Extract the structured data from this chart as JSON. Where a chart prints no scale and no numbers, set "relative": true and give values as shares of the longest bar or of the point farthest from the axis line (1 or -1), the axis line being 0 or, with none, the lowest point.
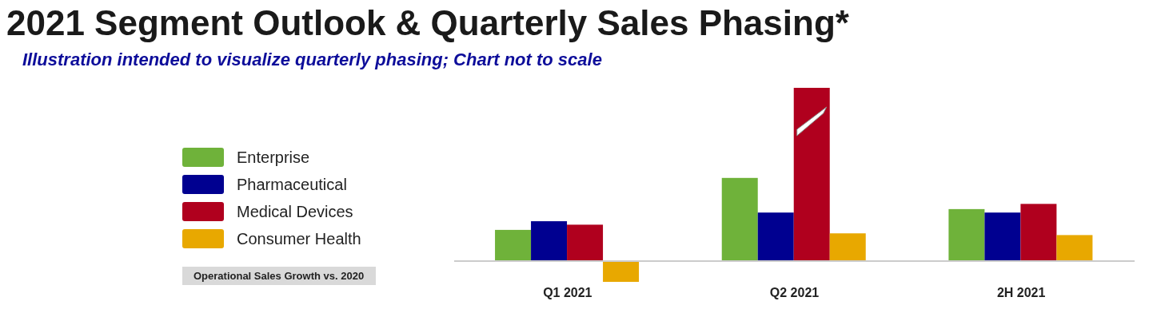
{
  "chart_data": {
    "type": "bar",
    "title": "2021 Segment Outlook & Quarterly Sales Phasing*",
    "subtitle": "Illustration intended to visualize quarterly phasing; Chart not to scale",
    "legend_title": "Operational Sales Growth vs. 2020",
    "categories": [
      "Q1 2021",
      "Q2 2021",
      "2H 2021"
    ],
    "relative": true,
    "legend": "left",
    "series": [
      {
        "name": "Enterprise",
        "color": "#6fb23a",
        "values": [
          0.18,
          0.48,
          0.3
        ]
      },
      {
        "name": "Pharmaceutical",
        "color": "#000090",
        "values": [
          0.23,
          0.28,
          0.28
        ]
      },
      {
        "name": "Medical Devices",
        "color": "#b0001e",
        "values": [
          0.21,
          1,
          0.33
        ]
      },
      {
        "name": "Consumer Health",
        "color": "#e8a800",
        "values": [
          -0.12,
          0.16,
          0.15
        ]
      }
    ]
  }
}
